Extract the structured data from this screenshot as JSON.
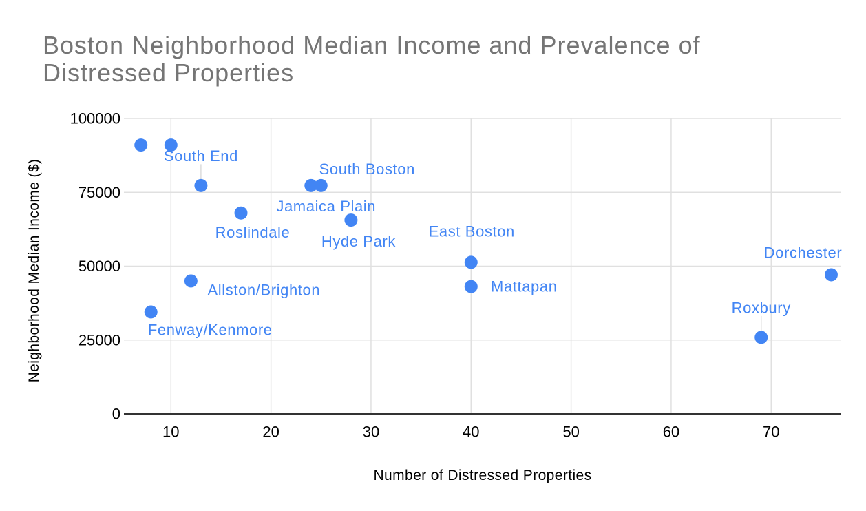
{
  "page": {
    "background": "#ffffff"
  },
  "chart_data": {
    "type": "scatter",
    "title": "Boston Neighborhood Median Income and Prevalence of Distressed Properties",
    "xlabel": "Number of Distressed Properties",
    "ylabel": "Neighborhood Median Income ($)",
    "legend": "none",
    "grid": true,
    "x_axis": {
      "min": 5.3,
      "max": 77,
      "ticks": [
        10,
        20,
        30,
        40,
        50,
        60,
        70
      ]
    },
    "y_axis": {
      "min": 0,
      "max": 100000,
      "ticks": [
        0,
        25000,
        50000,
        75000,
        100000
      ]
    },
    "colors": {
      "series": "#4285f4",
      "point_labels": "#4285f4",
      "title": "#757575",
      "tick_labels": "#000000",
      "axis_titles": "#000000",
      "gridlines": "#e0e0e0",
      "axis_line": "#333333",
      "leader_line": "#dcdcdc"
    },
    "points": [
      {
        "label": "",
        "x": 7,
        "y": 91000
      },
      {
        "label": "",
        "x": 10,
        "y": 91000
      },
      {
        "label": "South End",
        "x": 13,
        "y": 77300
      },
      {
        "label": "Fenway/Kenmore",
        "x": 8,
        "y": 34500
      },
      {
        "label": "Allston/Brighton",
        "x": 12,
        "y": 45000
      },
      {
        "label": "Roslindale",
        "x": 17,
        "y": 68000
      },
      {
        "label": "Jamaica Plain",
        "x": 24,
        "y": 77300
      },
      {
        "label": "South Boston",
        "x": 25,
        "y": 77300
      },
      {
        "label": "Hyde Park",
        "x": 28,
        "y": 65600
      },
      {
        "label": "East Boston",
        "x": 40,
        "y": 51300
      },
      {
        "label": "Mattapan",
        "x": 40,
        "y": 43100
      },
      {
        "label": "Roxbury",
        "x": 69,
        "y": 25900
      },
      {
        "label": "Dorchester",
        "x": 76,
        "y": 47100
      }
    ]
  }
}
